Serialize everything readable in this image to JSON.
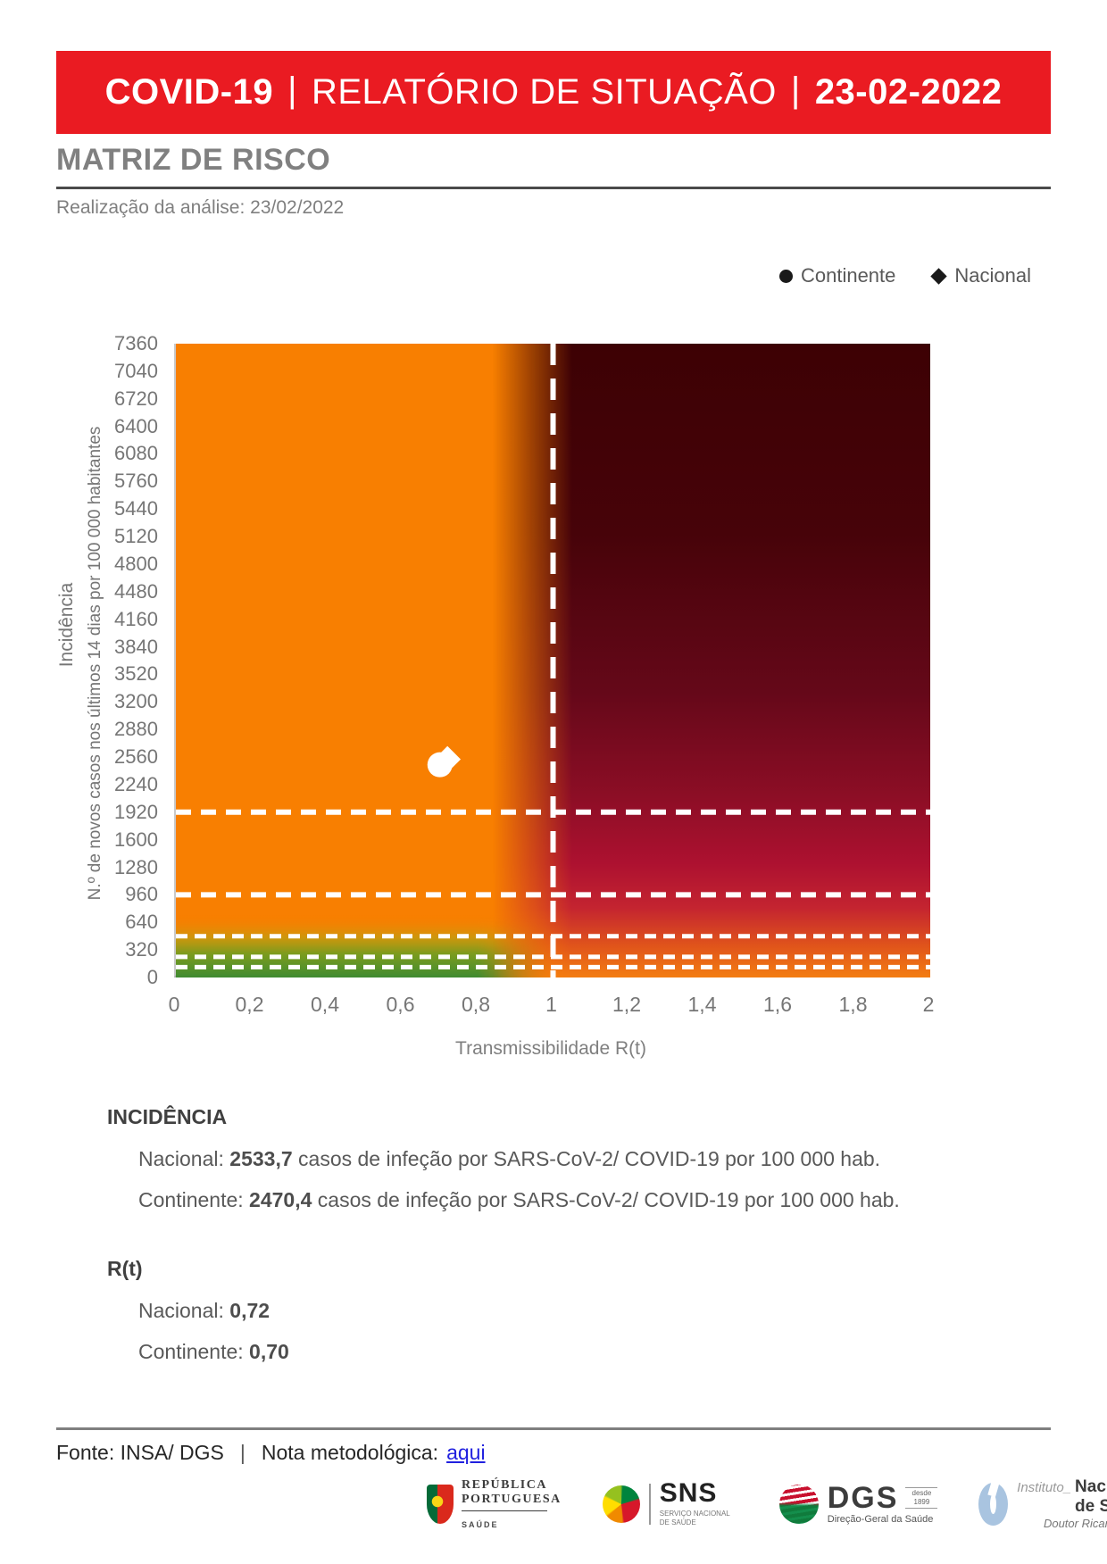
{
  "header": {
    "product": "COVID-19",
    "separator": "|",
    "title": "RELATÓRIO DE SITUAÇÃO",
    "date": "23-02-2022"
  },
  "page": {
    "section_title": "MATRIZ DE RISCO",
    "analysis_line": "Realização da análise: 23/02/2022"
  },
  "legend": {
    "items": [
      {
        "marker": "circle",
        "label": "Continente"
      },
      {
        "marker": "diamond",
        "label": "Nacional"
      }
    ]
  },
  "chart_data": {
    "type": "heatmap-scatter",
    "title": "Matriz de risco COVID-19",
    "xlabel": "Transmissibilidade R(t)",
    "ylabel_primary": "Incidência",
    "ylabel_secondary": "N.º de novos casos nos últimos 14 dias por 100 000 habitantes",
    "xlim": [
      0,
      2
    ],
    "ylim": [
      0,
      7360
    ],
    "x_ticks": [
      {
        "label": "0",
        "value": 0
      },
      {
        "label": "0,2",
        "value": 0.2
      },
      {
        "label": "0,4",
        "value": 0.4
      },
      {
        "label": "0,6",
        "value": 0.6
      },
      {
        "label": "0,8",
        "value": 0.8
      },
      {
        "label": "1",
        "value": 1
      },
      {
        "label": "1,2",
        "value": 1.2
      },
      {
        "label": "1,4",
        "value": 1.4
      },
      {
        "label": "1,6",
        "value": 1.6
      },
      {
        "label": "1,8",
        "value": 1.8
      },
      {
        "label": "2",
        "value": 2
      }
    ],
    "y_tick_values": [
      0,
      320,
      640,
      960,
      1280,
      1600,
      1920,
      2240,
      2560,
      2880,
      3200,
      3520,
      3840,
      4160,
      4480,
      4800,
      5120,
      5440,
      5760,
      6080,
      6400,
      6720,
      7040,
      7360
    ],
    "thresholds": {
      "vertical_rt": [
        1
      ],
      "horizontal_incidence": [
        1920,
        960,
        480,
        240,
        120
      ]
    },
    "series": [
      {
        "name": "Continente",
        "marker": "circle",
        "x": 0.7,
        "y": 2470.4
      },
      {
        "name": "Nacional",
        "marker": "diamond",
        "x": 0.72,
        "y": 2533.7
      }
    ],
    "palette": {
      "low_risk_orange": "#F87F01",
      "green_safe_zone": "#3F8B31",
      "olive_transition": "#7C9C1E",
      "dark_red_high_risk": "#3D0104",
      "crimson_mid": "#AD1130",
      "bottom_right_orange": "#F37D12",
      "threshold_line": "#FFFFFF",
      "marker_fill": "#FFFFFF"
    },
    "legend_position": "top-right",
    "grid": false
  },
  "stats": {
    "incidence": {
      "title": "INCIDÊNCIA",
      "items": [
        {
          "prefix": "Nacional: ",
          "value": "2533,7",
          "suffix": " casos de infeção por SARS-CoV-2/ COVID-19 por 100 000 hab."
        },
        {
          "prefix": "Continente: ",
          "value": "2470,4",
          "suffix": " casos de infeção por SARS-CoV-2/ COVID-19 por 100 000 hab."
        }
      ]
    },
    "rt": {
      "title": "R(t)",
      "items": [
        {
          "prefix": "Nacional: ",
          "value": "0,72",
          "suffix": ""
        },
        {
          "prefix": "Continente: ",
          "value": "0,70",
          "suffix": ""
        }
      ]
    }
  },
  "footer": {
    "source": "Fonte: INSA/ DGS",
    "divider": "|",
    "note_label": "Nota metodológica:",
    "link_label": "aqui"
  },
  "logos": {
    "republica": {
      "line1": "REPÚBLICA",
      "line2": "PORTUGUESA",
      "sub": "SAÚDE"
    },
    "sns": {
      "acronym": "SNS",
      "sub": "Serviço Nacional de Saúde"
    },
    "dgs": {
      "acronym": "DGS",
      "since": "desde 1899",
      "sub": "Direção-Geral da Saúde"
    },
    "insa": {
      "prefix": "Instituto_",
      "name": "Nacional de Saúde",
      "sub": "Doutor Ricardo Jorge"
    }
  }
}
